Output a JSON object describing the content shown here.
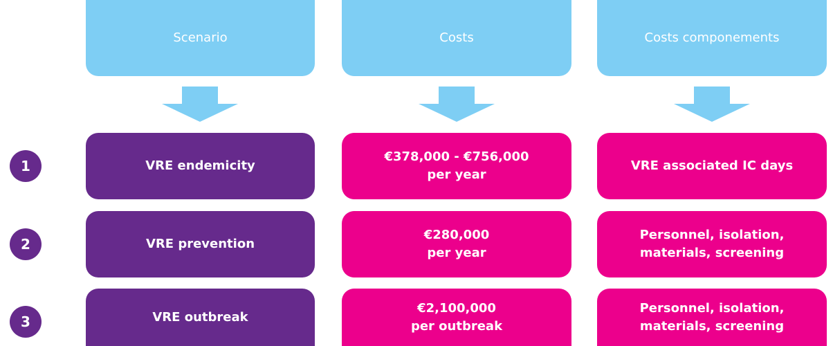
{
  "headers": [
    "Scenario",
    "Costs",
    "Costs componements"
  ],
  "rows": [
    {
      "number": "1",
      "scenario": "VRE endemicity",
      "costs": [
        "€378,000 - €756,000",
        "per year"
      ],
      "components": [
        "VRE associated IC days"
      ]
    },
    {
      "number": "2",
      "scenario": "VRE prevention",
      "costs": [
        "€280,000",
        "per year"
      ],
      "components": [
        "Personnel, isolation,",
        "materials, screening"
      ]
    },
    {
      "number": "3",
      "scenario": "VRE outbreak",
      "costs": [
        "€2,100,000",
        "per outbreak"
      ],
      "components": [
        "Personnel, isolation,",
        "materials, screening"
      ]
    }
  ]
}
